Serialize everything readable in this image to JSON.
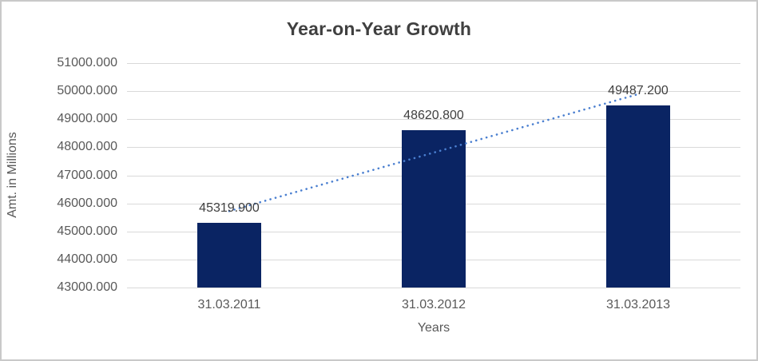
{
  "chart_data": {
    "type": "bar",
    "title": "Year-on-Year Growth",
    "categories": [
      "31.03.2011",
      "31.03.2012",
      "31.03.2013"
    ],
    "values": [
      45319.9,
      48620.8,
      49487.2
    ],
    "value_labels": [
      "45319.900",
      "48620.800",
      "49487.200"
    ],
    "xlabel": "Years",
    "ylabel": "Amt. in Millions",
    "ylim": [
      43000,
      51000
    ],
    "ytick_labels": [
      "51000.000",
      "50000.000",
      "49000.000",
      "48000.000",
      "47000.000",
      "46000.000",
      "45000.000",
      "44000.000",
      "43000.000"
    ],
    "grid": true,
    "legend": "none",
    "trendline": {
      "type": "linear",
      "style": "dotted",
      "series": "values"
    },
    "colors": {
      "bar": "#0a2463",
      "trend": "#4a7fd0",
      "grid": "#d9d9d9",
      "axis_text": "#595959",
      "label_text": "#404040",
      "title_text": "#404040",
      "frame_border": "#c9c9c9",
      "background": "#ffffff"
    }
  }
}
